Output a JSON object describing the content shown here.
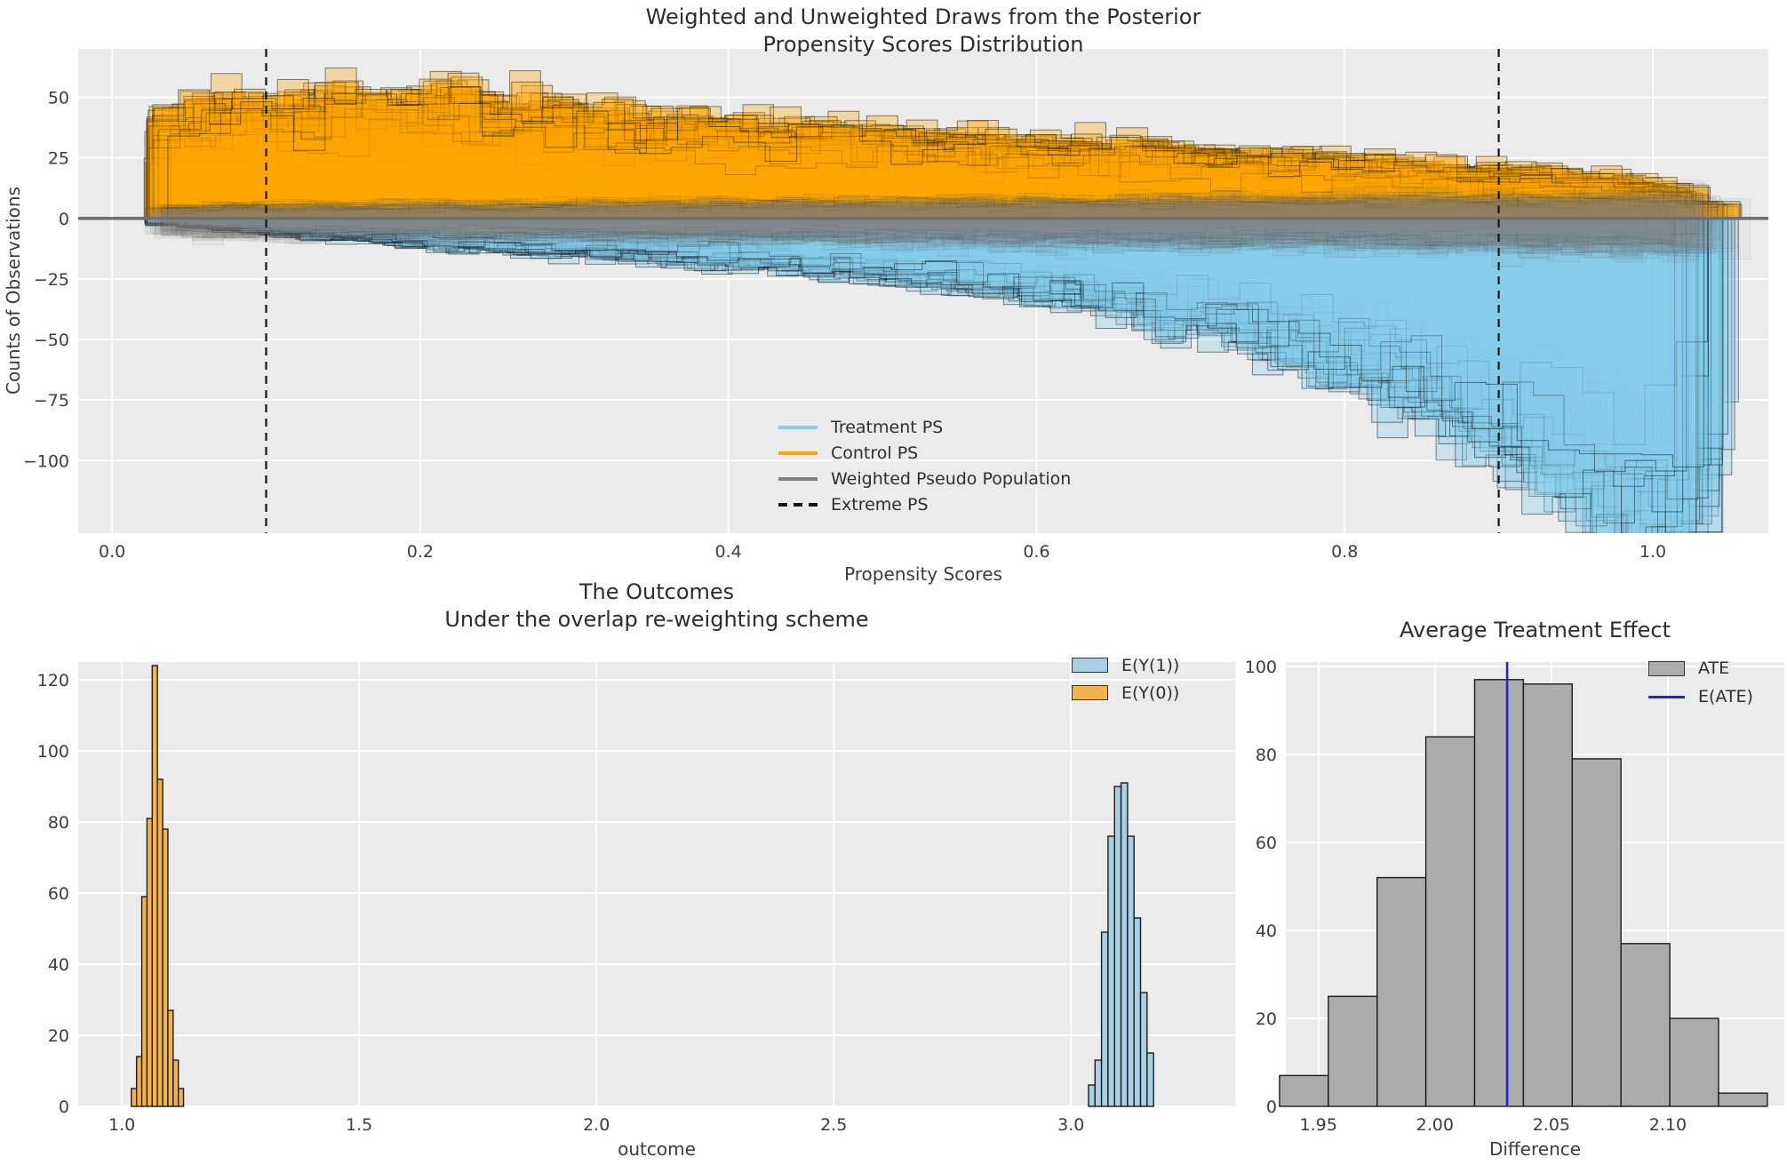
{
  "colors": {
    "figure_bg": "#FFFFFF",
    "panel_bg": "#EBEBEB",
    "grid": "#FFFFFF",
    "title_text": "#2D2D2D",
    "tick_text": "#3D3D3D",
    "zero_line": "#6F6F6F",
    "extreme_line": "#141414",
    "control_orange": "#FFA500",
    "treatment_blue": "#87CEEB",
    "weighted_gray": "#808080",
    "outcome_blue_fill": "#A9CFE4",
    "outcome_orange_fill": "#F3B34C",
    "ate_gray_fill": "#ACACAC",
    "eate_blue": "#2222DD",
    "bar_edge": "#1B1B1B"
  },
  "chart_data": [
    {
      "id": "posterior-propensity",
      "type": "histogram-ensemble",
      "title_line1": "Weighted and Unweighted Draws from the Posterior",
      "title_line2": "Propensity Scores Distribution",
      "xlabel": "Propensity Scores",
      "ylabel": "Counts of Observations",
      "xlim": [
        -0.022,
        1.075
      ],
      "ylim": [
        -130,
        70
      ],
      "xticks": [
        0,
        0.2,
        0.4,
        0.6,
        0.8,
        1.0
      ],
      "xtick_labels": [
        "0.0",
        "0.2",
        "0.4",
        "0.6",
        "0.8",
        "1.0"
      ],
      "yticks": [
        50,
        25,
        0,
        -25,
        -50,
        -75,
        -100
      ],
      "ytick_labels": [
        "50",
        "25",
        "0",
        "−25",
        "−50",
        "−75",
        "−100"
      ],
      "grid": true,
      "bins": {
        "start": 0.03,
        "width": 0.02,
        "count": 50
      },
      "series": [
        {
          "name": "Control PS",
          "side": "up",
          "color_key": "control_orange",
          "mean_counts": [
            36,
            38,
            39,
            40,
            41,
            42,
            41,
            40,
            41,
            43,
            40,
            38,
            37,
            37,
            36,
            35,
            34,
            34,
            33,
            32,
            31,
            31,
            30,
            30,
            29,
            28,
            28,
            27,
            26,
            26,
            25,
            25,
            24,
            23,
            23,
            22,
            21,
            21,
            20,
            19,
            19,
            18,
            17,
            17,
            16,
            15,
            14,
            13,
            11,
            6
          ]
        },
        {
          "name": "Treatment PS",
          "side": "down",
          "color_key": "treatment_blue",
          "mean_counts": [
            2,
            3,
            4,
            5,
            6,
            7,
            7,
            8,
            9,
            10,
            10,
            11,
            12,
            12,
            13,
            13,
            14,
            15,
            15,
            16,
            17,
            18,
            19,
            20,
            21,
            22,
            24,
            25,
            27,
            28,
            30,
            32,
            34,
            36,
            39,
            42,
            45,
            48,
            52,
            56,
            60,
            65,
            70,
            76,
            82,
            88,
            94,
            100,
            105,
            102
          ]
        },
        {
          "name": "Weighted Pseudo Population",
          "side": "both",
          "color_key": "weighted_gray",
          "up_base": 4.5,
          "up_slope": 4.2,
          "down_base": 6.0,
          "down_slope": 5.5
        }
      ],
      "ensemble": {
        "n_draws": 80,
        "n_weighted_draws": 30,
        "seed": 20250412,
        "draw_scale_sd": 0.07,
        "bin_noise_sd": 0.16
      },
      "zero_line_value": 0,
      "extreme_ps_values": [
        0.1,
        0.9
      ],
      "legend": [
        {
          "label": "Treatment PS",
          "color_key": "treatment_blue",
          "style": "line"
        },
        {
          "label": "Control PS",
          "color_key": "control_orange",
          "style": "line"
        },
        {
          "label": "Weighted Pseudo Population",
          "color_key": "weighted_gray",
          "style": "line"
        },
        {
          "label": "Extreme PS",
          "color_key": "extreme_line",
          "style": "dashed-line"
        }
      ]
    },
    {
      "id": "outcomes",
      "type": "histogram",
      "title_line1": "The Outcomes",
      "title_line2": "Under the overlap re-weighting scheme",
      "xlabel": "outcome",
      "ylabel": "",
      "xlim": [
        0.908,
        3.346
      ],
      "ylim": [
        0,
        125
      ],
      "xticks": [
        1.0,
        1.5,
        2.0,
        2.5,
        3.0
      ],
      "xtick_labels": [
        "1.0",
        "1.5",
        "2.0",
        "2.5",
        "3.0"
      ],
      "yticks": [
        0,
        20,
        40,
        60,
        80,
        100,
        120
      ],
      "ytick_labels": [
        "0",
        "20",
        "40",
        "60",
        "80",
        "100",
        "120"
      ],
      "grid": true,
      "series": [
        {
          "name": "E(Y(1))",
          "color_key": "outcome_blue_fill",
          "bin_start": 3.037,
          "bin_width": 0.0137,
          "counts": [
            6,
            13,
            49,
            76,
            90,
            91,
            76,
            53,
            32,
            15
          ]
        },
        {
          "name": "E(Y(0))",
          "color_key": "outcome_orange_fill",
          "bin_start": 1.02,
          "bin_width": 0.011,
          "counts": [
            5,
            14,
            59,
            81,
            124,
            92,
            78,
            27,
            13,
            5
          ]
        }
      ],
      "legend": [
        {
          "label": "E(Y(1))",
          "color_key": "outcome_blue_fill",
          "style": "patch"
        },
        {
          "label": "E(Y(0))",
          "color_key": "outcome_orange_fill",
          "style": "patch"
        }
      ]
    },
    {
      "id": "average-treatment-effect",
      "type": "histogram",
      "title_line1": "Average Treatment Effect",
      "title_line2": "",
      "xlabel": "Difference",
      "ylabel": "",
      "xlim": [
        1.936,
        2.15
      ],
      "ylim": [
        0,
        101
      ],
      "xticks": [
        1.95,
        2.0,
        2.05,
        2.1
      ],
      "xtick_labels": [
        "1.95",
        "2.00",
        "2.05",
        "2.10"
      ],
      "yticks": [
        0,
        20,
        40,
        60,
        80,
        100
      ],
      "ytick_labels": [
        "0",
        "20",
        "40",
        "60",
        "80",
        "100"
      ],
      "grid": true,
      "series": [
        {
          "name": "ATE",
          "color_key": "ate_gray_fill",
          "bin_start": 1.9333,
          "bin_width": 0.02094,
          "counts": [
            7,
            25,
            52,
            84,
            97,
            96,
            79,
            37,
            20,
            3
          ]
        }
      ],
      "vline": {
        "label": "E(ATE)",
        "value": 2.031,
        "color_key": "eate_blue"
      },
      "legend": [
        {
          "label": "ATE",
          "color_key": "ate_gray_fill",
          "style": "patch"
        },
        {
          "label": "E(ATE)",
          "color_key": "eate_blue",
          "style": "line"
        }
      ]
    }
  ]
}
